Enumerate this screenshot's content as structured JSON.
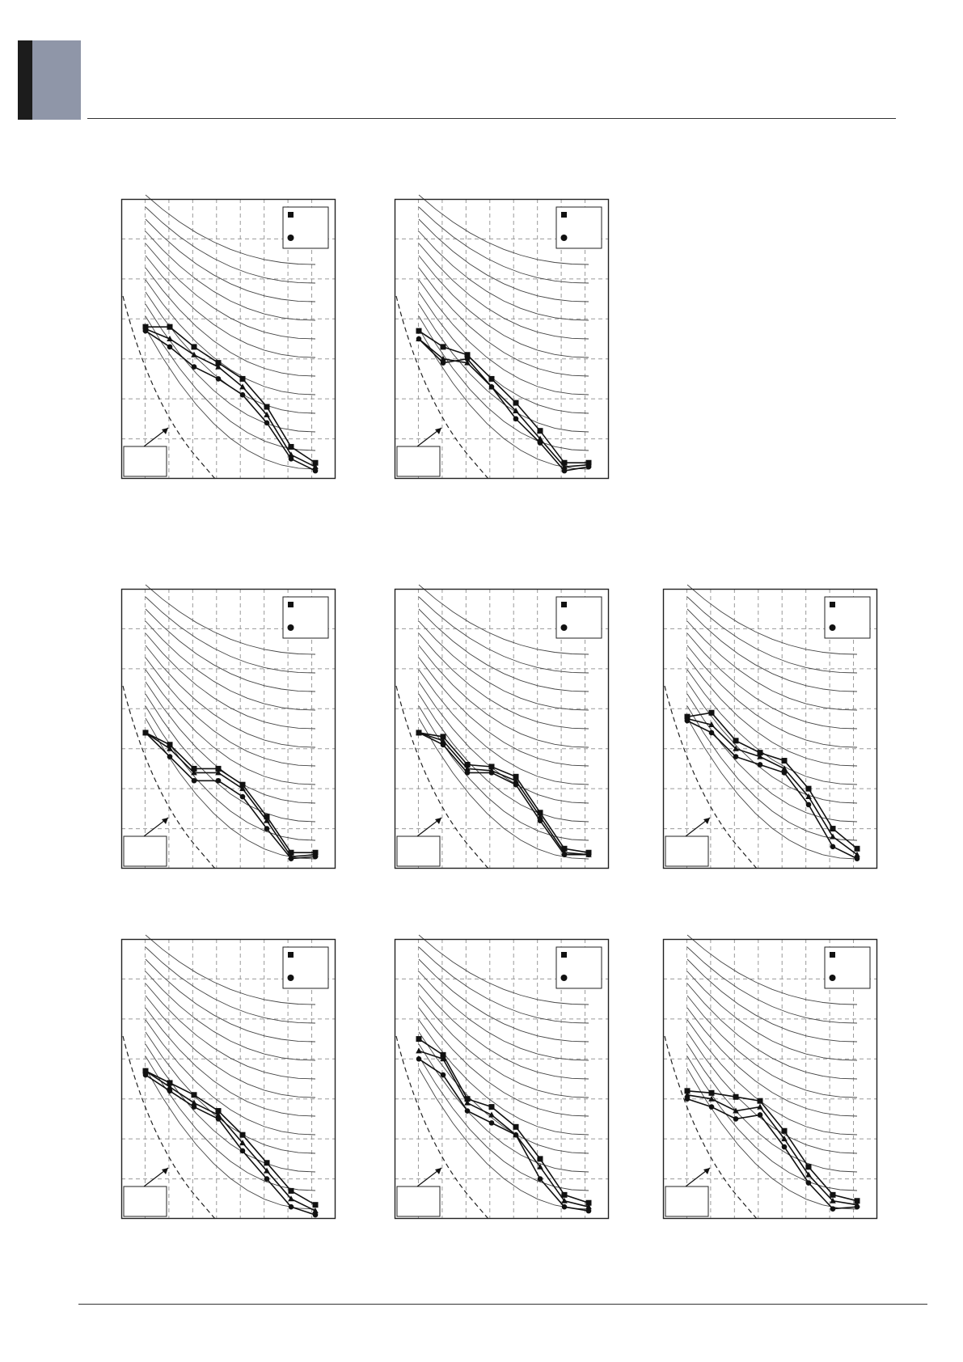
{
  "colors": {
    "tab_dark": "#1c1c1c",
    "tab_light": "#8f96a8",
    "rule": "#333333",
    "frame": "#222222",
    "grid": "#9a9a9a",
    "curve": "#444444",
    "series": "#111111"
  },
  "chart_data": [
    {
      "type": "line",
      "x": [
        1,
        2,
        3,
        4,
        5,
        6,
        7,
        8
      ],
      "xlim": [
        0,
        9
      ],
      "ylim": [
        0,
        7
      ],
      "grid": true,
      "legend": "top-right",
      "series": [
        {
          "marker": "square",
          "values": [
            3.8,
            3.8,
            3.3,
            2.9,
            2.5,
            1.8,
            0.8,
            0.4
          ]
        },
        {
          "marker": "triangle",
          "values": [
            3.75,
            3.5,
            3.1,
            2.8,
            2.3,
            1.6,
            0.6,
            0.3
          ]
        },
        {
          "marker": "circle",
          "values": [
            3.7,
            3.3,
            2.8,
            2.5,
            2.1,
            1.4,
            0.5,
            0.2
          ]
        }
      ]
    },
    {
      "type": "line",
      "x": [
        1,
        2,
        3,
        4,
        5,
        6,
        7,
        8
      ],
      "xlim": [
        0,
        9
      ],
      "ylim": [
        0,
        7
      ],
      "grid": true,
      "legend": "top-right",
      "series": [
        {
          "marker": "square",
          "values": [
            3.7,
            3.3,
            3.1,
            2.5,
            1.9,
            1.2,
            0.4,
            0.4
          ]
        },
        {
          "marker": "triangle",
          "values": [
            3.5,
            3.0,
            2.9,
            2.3,
            1.7,
            1.0,
            0.3,
            0.35
          ]
        },
        {
          "marker": "circle",
          "values": [
            3.5,
            2.9,
            3.0,
            2.3,
            1.5,
            0.9,
            0.2,
            0.3
          ]
        }
      ]
    },
    {
      "type": "line",
      "x": [
        1,
        2,
        3,
        4,
        5,
        6,
        7,
        8
      ],
      "xlim": [
        0,
        9
      ],
      "ylim": [
        0,
        7
      ],
      "grid": true,
      "legend": "top-right",
      "series": [
        {
          "marker": "square",
          "values": [
            3.4,
            3.1,
            2.5,
            2.5,
            2.1,
            1.3,
            0.4,
            0.4
          ]
        },
        {
          "marker": "triangle",
          "values": [
            3.4,
            3.0,
            2.4,
            2.4,
            2.0,
            1.2,
            0.3,
            0.35
          ]
        },
        {
          "marker": "circle",
          "values": [
            3.4,
            2.8,
            2.2,
            2.2,
            1.8,
            1.0,
            0.25,
            0.3
          ]
        }
      ]
    },
    {
      "type": "line",
      "x": [
        1,
        2,
        3,
        4,
        5,
        6,
        7,
        8
      ],
      "xlim": [
        0,
        9
      ],
      "ylim": [
        0,
        7
      ],
      "grid": true,
      "legend": "top-right",
      "series": [
        {
          "marker": "square",
          "values": [
            3.4,
            3.3,
            2.6,
            2.55,
            2.3,
            1.4,
            0.5,
            0.4
          ]
        },
        {
          "marker": "triangle",
          "values": [
            3.4,
            3.2,
            2.5,
            2.45,
            2.2,
            1.3,
            0.4,
            0.35
          ]
        },
        {
          "marker": "circle",
          "values": [
            3.4,
            3.1,
            2.4,
            2.4,
            2.1,
            1.2,
            0.35,
            0.35
          ]
        }
      ]
    },
    {
      "type": "line",
      "x": [
        1,
        2,
        3,
        4,
        5,
        6,
        7,
        8
      ],
      "xlim": [
        0,
        9
      ],
      "ylim": [
        0,
        7
      ],
      "grid": true,
      "legend": "top-right",
      "series": [
        {
          "marker": "square",
          "values": [
            3.8,
            3.9,
            3.2,
            2.9,
            2.7,
            2.0,
            1.0,
            0.5
          ]
        },
        {
          "marker": "triangle",
          "values": [
            3.75,
            3.6,
            3.0,
            2.8,
            2.5,
            1.8,
            0.8,
            0.35
          ]
        },
        {
          "marker": "circle",
          "values": [
            3.7,
            3.4,
            2.8,
            2.6,
            2.4,
            1.6,
            0.55,
            0.25
          ]
        }
      ]
    },
    {
      "type": "line",
      "x": [
        1,
        2,
        3,
        4,
        5,
        6,
        7,
        8
      ],
      "xlim": [
        0,
        9
      ],
      "ylim": [
        0,
        7
      ],
      "grid": true,
      "legend": "top-right",
      "series": [
        {
          "marker": "square",
          "values": [
            3.7,
            3.4,
            3.1,
            2.7,
            2.1,
            1.4,
            0.7,
            0.35
          ]
        },
        {
          "marker": "triangle",
          "values": [
            3.7,
            3.3,
            2.9,
            2.6,
            1.9,
            1.2,
            0.5,
            0.2
          ]
        },
        {
          "marker": "circle",
          "values": [
            3.6,
            3.2,
            2.8,
            2.5,
            1.7,
            1.0,
            0.3,
            0.1
          ]
        }
      ]
    },
    {
      "type": "line",
      "x": [
        1,
        2,
        3,
        4,
        5,
        6,
        7,
        8
      ],
      "xlim": [
        0,
        9
      ],
      "ylim": [
        0,
        7
      ],
      "grid": true,
      "legend": "top-right",
      "series": [
        {
          "marker": "square",
          "values": [
            4.5,
            4.1,
            3.0,
            2.8,
            2.3,
            1.5,
            0.6,
            0.4
          ]
        },
        {
          "marker": "triangle",
          "values": [
            4.2,
            4.0,
            2.9,
            2.6,
            2.1,
            1.3,
            0.45,
            0.3
          ]
        },
        {
          "marker": "circle",
          "values": [
            4.0,
            3.6,
            2.7,
            2.4,
            2.1,
            1.0,
            0.3,
            0.2
          ]
        }
      ]
    },
    {
      "type": "line",
      "x": [
        1,
        2,
        3,
        4,
        5,
        6,
        7,
        8
      ],
      "xlim": [
        0,
        9
      ],
      "ylim": [
        0,
        7
      ],
      "grid": true,
      "legend": "top-right",
      "series": [
        {
          "marker": "square",
          "values": [
            3.2,
            3.15,
            3.05,
            2.95,
            2.2,
            1.3,
            0.6,
            0.45
          ]
        },
        {
          "marker": "triangle",
          "values": [
            3.1,
            3.0,
            2.7,
            2.8,
            2.0,
            1.1,
            0.45,
            0.35
          ]
        },
        {
          "marker": "circle",
          "values": [
            3.0,
            2.8,
            2.5,
            2.6,
            1.8,
            0.9,
            0.25,
            0.3
          ]
        }
      ]
    }
  ]
}
